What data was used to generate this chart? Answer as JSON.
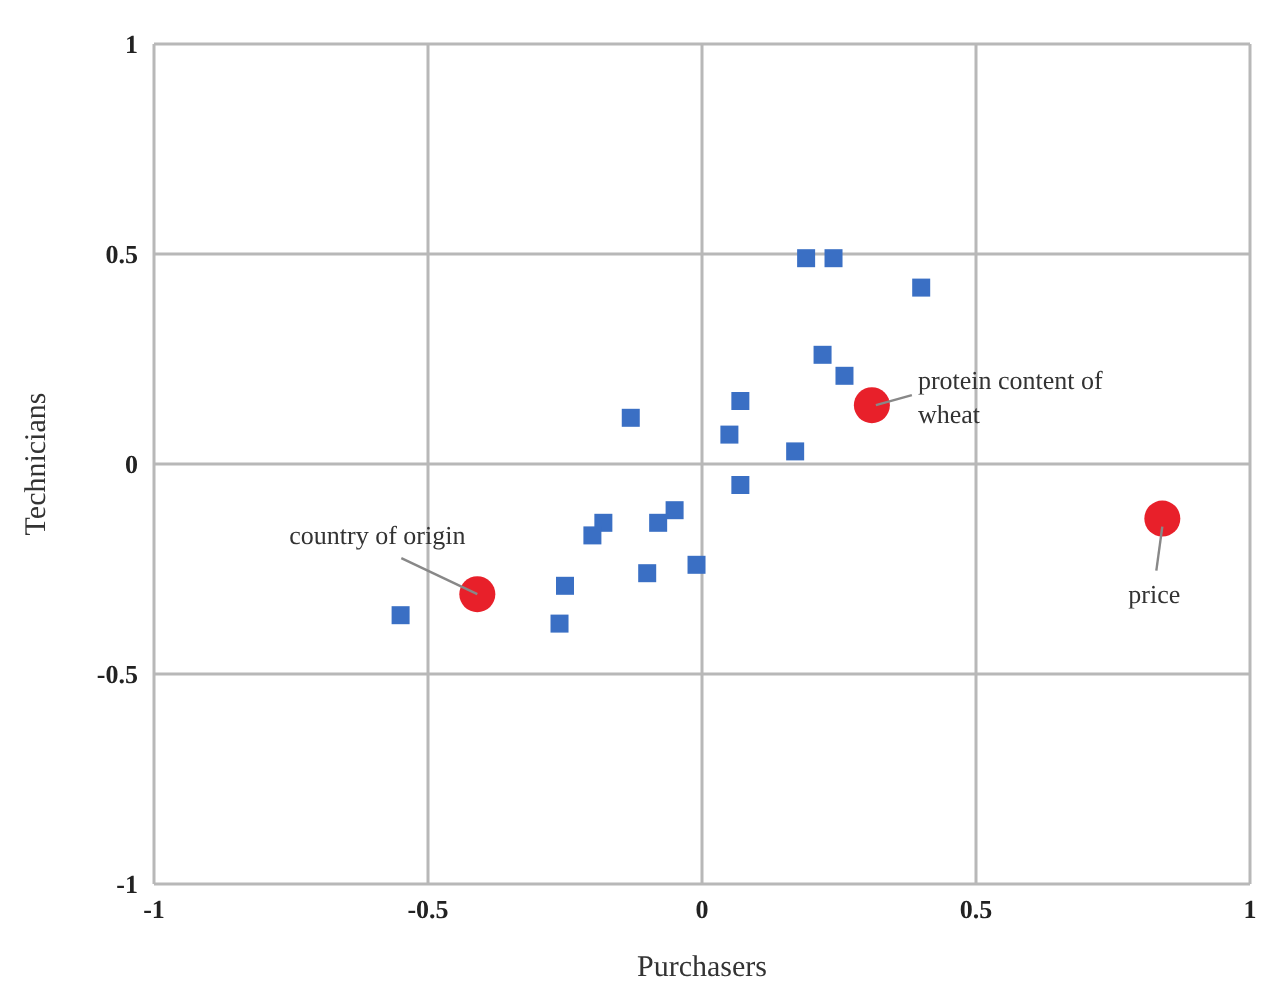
{
  "chart_data": {
    "type": "scatter",
    "xlabel": "Purchasers",
    "ylabel": "Technicians",
    "xlim": [
      -1,
      1
    ],
    "ylim": [
      -1,
      1
    ],
    "xticks": [
      -1,
      -0.5,
      0,
      0.5,
      1
    ],
    "yticks": [
      -1,
      -0.5,
      0,
      0.5,
      1
    ],
    "grid": true,
    "legend": false,
    "series": [
      {
        "color": "#3a6fc4",
        "marker": "square",
        "x": [
          0.19,
          0.24,
          0.4,
          0.22,
          0.26,
          0.07,
          -0.13,
          0.05,
          0.17,
          0.07,
          -0.05,
          -0.08,
          -0.18,
          -0.2,
          -0.01,
          -0.1,
          -0.25,
          -0.26,
          -0.55
        ],
        "values": [
          0.49,
          0.49,
          0.42,
          0.26,
          0.21,
          0.15,
          0.11,
          0.07,
          0.03,
          -0.05,
          -0.11,
          -0.14,
          -0.14,
          -0.17,
          -0.24,
          -0.26,
          -0.29,
          -0.38,
          -0.36
        ]
      },
      {
        "color": "#e8202a",
        "marker": "circle",
        "x": [
          -0.41,
          0.31,
          0.84
        ],
        "values": [
          -0.31,
          0.14,
          -0.13
        ]
      }
    ],
    "annotations": [
      {
        "text": "country of origin",
        "x": -0.41,
        "y": -0.31
      },
      {
        "text": "protein content of wheat",
        "x": 0.31,
        "y": 0.14
      },
      {
        "text": "price",
        "x": 0.84,
        "y": -0.13
      }
    ]
  }
}
